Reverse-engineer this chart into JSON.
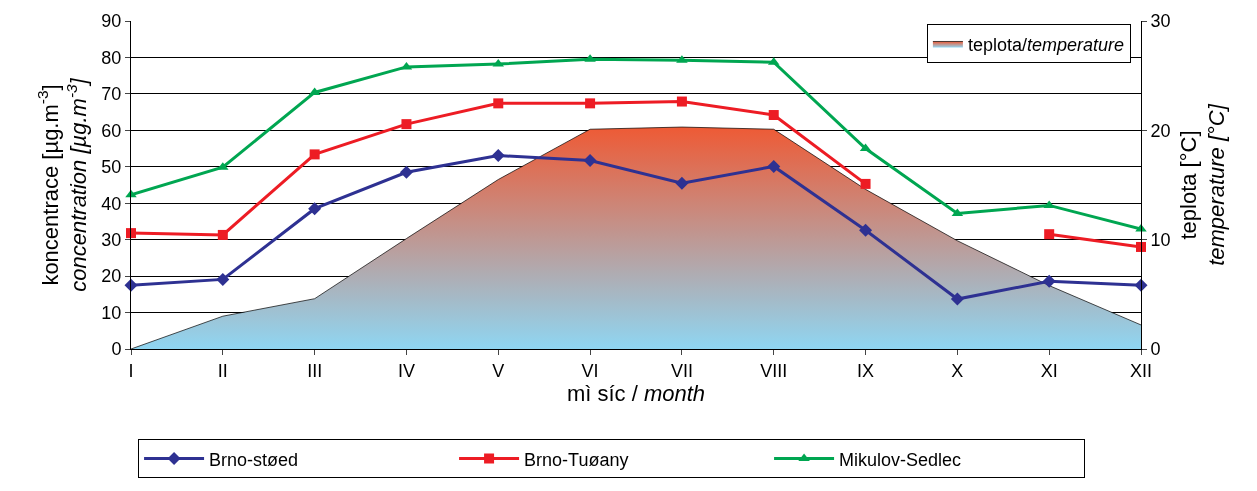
{
  "chart_data": {
    "type": "line",
    "xlabel": "mì síc / month",
    "ylabel": "koncentrace [µg.m$^{-3}$]\nconcentration [µg.m$^{-3}$]",
    "y2label": "teplota [°C]\ntemperature [°C]",
    "categories": [
      "I",
      "II",
      "III",
      "IV",
      "V",
      "VI",
      "VII",
      "VIII",
      "IX",
      "X",
      "XI",
      "XII"
    ],
    "series": [
      {
        "name": "teplota/temperature",
        "type": "area",
        "axis": "y2",
        "color": "#ee5a35",
        "values": [
          0,
          3.0,
          4.6,
          10.1,
          15.5,
          20.1,
          20.3,
          20.1,
          14.6,
          9.9,
          5.8,
          2.2
        ]
      },
      {
        "name": "Brno-støed",
        "color": "#2e3192",
        "marker": "diamond",
        "values": [
          17.5,
          19.1,
          38.5,
          48.5,
          53.1,
          51.7,
          45.5,
          50.1,
          32.6,
          13.7,
          18.6,
          17.5
        ]
      },
      {
        "name": "Brno-Tuøany",
        "color": "#ed1c24",
        "marker": "square",
        "values": [
          31.8,
          31.3,
          53.4,
          61.7,
          67.4,
          67.4,
          67.9,
          64.2,
          45.3,
          null,
          31.5,
          28.0
        ]
      },
      {
        "name": "Mikulov-Sedlec",
        "color": "#00a651",
        "marker": "triangle",
        "values": [
          42.3,
          49.9,
          70.4,
          77.4,
          78.2,
          79.5,
          79.2,
          78.7,
          55.0,
          37.2,
          39.4,
          32.9
        ]
      }
    ],
    "ylim": [
      0,
      90
    ],
    "yticks": [
      0,
      10,
      20,
      30,
      40,
      50,
      60,
      70,
      80,
      90
    ],
    "y2lim": [
      0,
      30
    ],
    "y2ticks": [
      0,
      10,
      20,
      30
    ],
    "grid": "y",
    "legend": "bottom"
  }
}
